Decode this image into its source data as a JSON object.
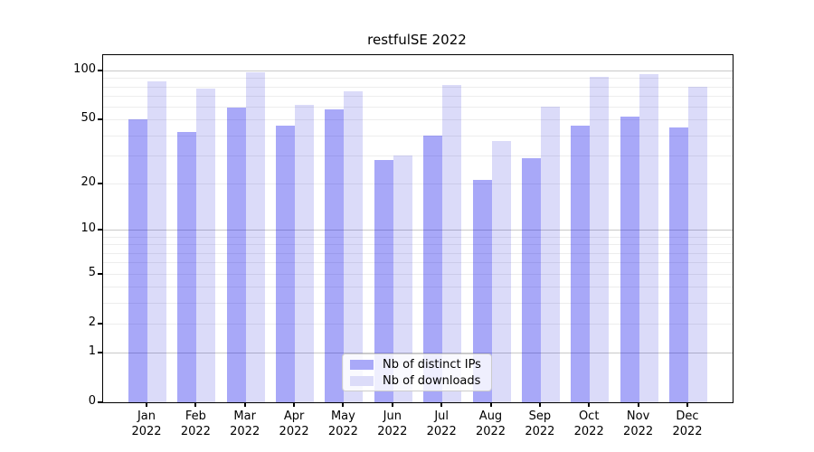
{
  "chart_data": {
    "type": "bar",
    "title": "restfulSE 2022",
    "categories": [
      "Jan",
      "Feb",
      "Mar",
      "Apr",
      "May",
      "Jun",
      "Jul",
      "Aug",
      "Sep",
      "Oct",
      "Nov",
      "Dec"
    ],
    "year_label": "2022",
    "series": [
      {
        "name": "Nb of distinct IPs",
        "swatch_color": "#a9a9f8",
        "fill": "rgba(0,0,235,0.34)",
        "values": [
          50,
          42,
          59,
          46,
          58,
          28,
          40,
          21,
          29,
          46,
          52,
          45
        ]
      },
      {
        "name": "Nb of downloads",
        "swatch_color": "#dcdcf9",
        "fill": "rgba(0,0,212,0.14)",
        "values": [
          86,
          78,
          97,
          62,
          75,
          30,
          82,
          37,
          60,
          91,
          95,
          80
        ]
      }
    ],
    "yticks": [
      100,
      50,
      20,
      10,
      5,
      2,
      1,
      0
    ],
    "major_gridlines": [
      100,
      10,
      1
    ],
    "minor_gridlines": [
      90,
      80,
      70,
      60,
      50,
      40,
      30,
      20,
      9,
      8,
      7,
      6,
      5,
      4,
      3,
      2
    ],
    "ylim": [
      0,
      124
    ],
    "yscale": "log1p",
    "xlabel": "",
    "ylabel": "",
    "grid": "on",
    "legend_position": "lower center",
    "axis_frame_color": "#000000",
    "major_grid_color": "#c9c9c9",
    "minor_grid_color": "#ededed"
  }
}
